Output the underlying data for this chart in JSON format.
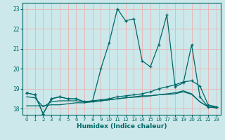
{
  "xlabel": "Humidex (Indice chaleur)",
  "bg_color": "#cce8ea",
  "grid_color": "#e8b8b8",
  "line_color": "#006868",
  "xlim": [
    -0.5,
    23.5
  ],
  "ylim": [
    17.7,
    23.3
  ],
  "xticks": [
    0,
    1,
    2,
    3,
    4,
    5,
    6,
    7,
    8,
    9,
    10,
    11,
    12,
    13,
    14,
    15,
    16,
    17,
    18,
    19,
    20,
    21,
    22,
    23
  ],
  "yticks": [
    18,
    19,
    20,
    21,
    22,
    23
  ],
  "series1_x": [
    0,
    1,
    2,
    3,
    4,
    5,
    6,
    7,
    8,
    9,
    10,
    11,
    12,
    13,
    14,
    15,
    16,
    17,
    18,
    19,
    20,
    21,
    22,
    23
  ],
  "series1_y": [
    18.8,
    18.7,
    17.75,
    18.5,
    18.6,
    18.5,
    18.5,
    18.35,
    18.4,
    20.0,
    21.3,
    23.0,
    22.4,
    22.5,
    20.4,
    20.1,
    21.2,
    22.7,
    19.1,
    19.3,
    21.2,
    18.6,
    18.1,
    18.1
  ],
  "series2_x": [
    0,
    1,
    2,
    3,
    4,
    5,
    6,
    7,
    8,
    9,
    10,
    11,
    12,
    13,
    14,
    15,
    16,
    17,
    18,
    19,
    20,
    21,
    22,
    23
  ],
  "series2_y": [
    18.8,
    18.7,
    17.75,
    18.5,
    18.6,
    18.5,
    18.5,
    18.35,
    18.4,
    18.45,
    18.5,
    18.6,
    18.65,
    18.7,
    18.75,
    18.85,
    19.0,
    19.1,
    19.2,
    19.35,
    19.4,
    19.15,
    18.2,
    18.1
  ],
  "series3_x": [
    0,
    1,
    2,
    3,
    4,
    5,
    6,
    7,
    8,
    9,
    10,
    11,
    12,
    13,
    14,
    15,
    16,
    17,
    18,
    19,
    20,
    21,
    22,
    23
  ],
  "series3_y": [
    18.15,
    18.15,
    18.15,
    18.2,
    18.2,
    18.25,
    18.3,
    18.3,
    18.35,
    18.4,
    18.45,
    18.5,
    18.55,
    18.6,
    18.65,
    18.65,
    18.7,
    18.75,
    18.8,
    18.9,
    18.75,
    18.35,
    18.1,
    18.05
  ],
  "series4_x": [
    0,
    1,
    2,
    3,
    4,
    5,
    6,
    7,
    8,
    9,
    10,
    11,
    12,
    13,
    14,
    15,
    16,
    17,
    18,
    19,
    20,
    21,
    22,
    23
  ],
  "series4_y": [
    18.6,
    18.55,
    18.1,
    18.35,
    18.4,
    18.4,
    18.4,
    18.35,
    18.35,
    18.4,
    18.45,
    18.5,
    18.55,
    18.58,
    18.6,
    18.65,
    18.7,
    18.72,
    18.75,
    18.85,
    18.72,
    18.35,
    18.1,
    18.05
  ]
}
